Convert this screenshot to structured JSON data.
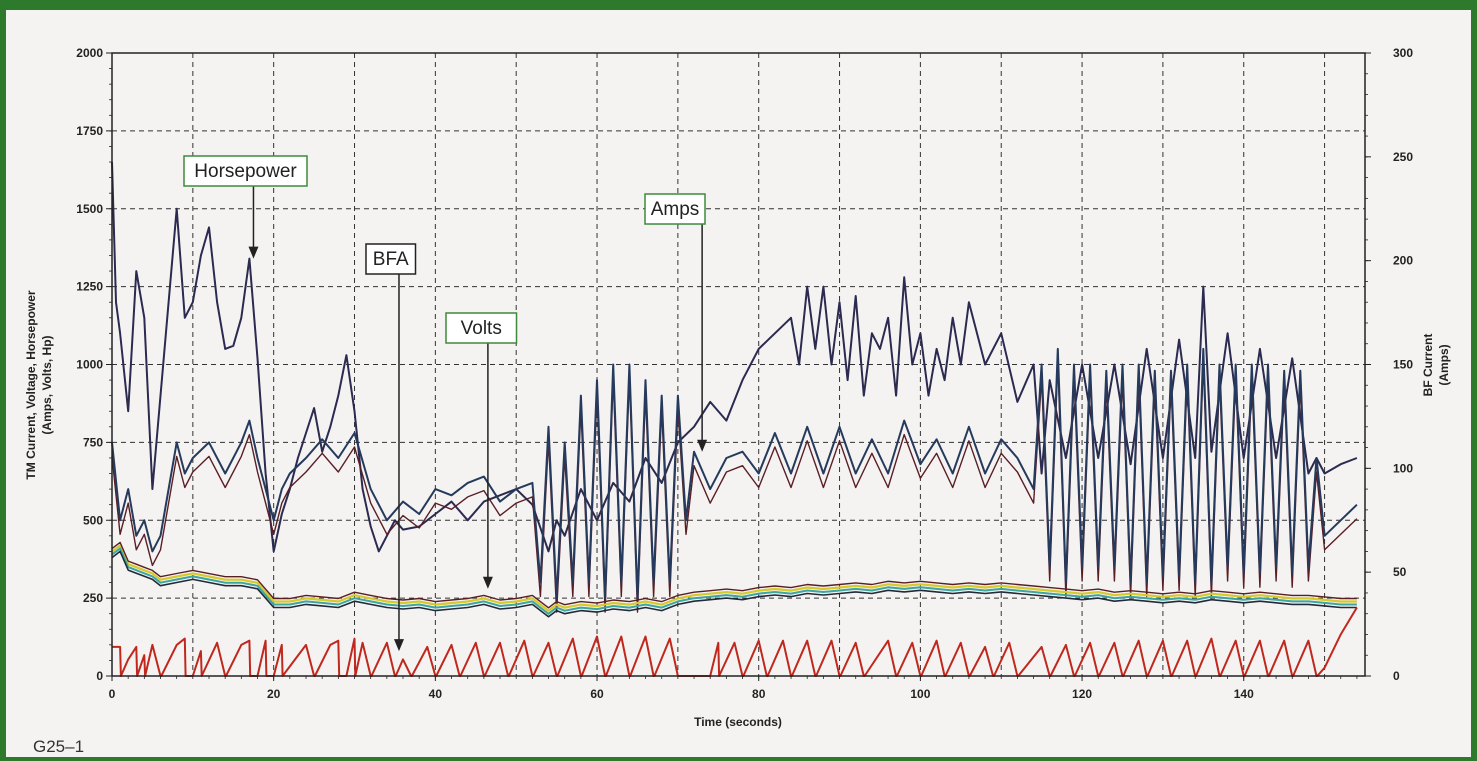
{
  "figure_id": "G25–1",
  "colors": {
    "background_frame": "#2d7a2c",
    "panel": "#f4f3f1",
    "horsepower": "#2b2a50",
    "amps": "#253a5c",
    "amps_maroon": "#5a1f26",
    "volts": "#1f2b3b",
    "volts_yellow": "#d8c92b",
    "volts_teal": "#3da6a0",
    "bfa": "#c0281e",
    "annotation_green": "#3d8a3a",
    "annotation_dark": "#222222"
  },
  "chart_data": {
    "type": "line",
    "title": "",
    "xlabel": "Time (seconds)",
    "ylabel_left": [
      "TM Current, Voltage, Horsepower",
      "(Amps, Volts, Hp)"
    ],
    "ylabel_right": [
      "BF Current",
      "(Amps)"
    ],
    "xlim": [
      0,
      155
    ],
    "ylim_left": [
      0,
      2000
    ],
    "ylim_right": [
      0,
      300
    ],
    "x_ticks": [
      "0",
      "20",
      "40",
      "60",
      "80",
      "100",
      "120",
      "140"
    ],
    "y_ticks_left": [
      "0",
      "250",
      "500",
      "750",
      "1000",
      "1250",
      "1500",
      "1750",
      "2000"
    ],
    "y_ticks_right": [
      "0",
      "50",
      "100",
      "150",
      "200",
      "250",
      "300"
    ],
    "grid": true,
    "annotations": [
      {
        "text": "Horsepower",
        "points_to": [
          17.5,
          1340
        ]
      },
      {
        "text": "BFA",
        "points_to": [
          35.5,
          80
        ]
      },
      {
        "text": "Volts",
        "points_to": [
          46.5,
          280
        ]
      },
      {
        "text": "Amps",
        "points_to": [
          73,
          720
        ]
      }
    ],
    "series": [
      {
        "name": "Horsepower",
        "axis": "left",
        "x": [
          0,
          0.5,
          1,
          2,
          3,
          4,
          5,
          6,
          7,
          8,
          9,
          10,
          11,
          12,
          13,
          14,
          15,
          16,
          17,
          18,
          19,
          20,
          21,
          22,
          23,
          24,
          25,
          26,
          27,
          28,
          29,
          30,
          31,
          32,
          33,
          34,
          35,
          36,
          38,
          40,
          42,
          44,
          46,
          48,
          50,
          52,
          54,
          55,
          56,
          58,
          60,
          62,
          64,
          66,
          68,
          70,
          72,
          74,
          76,
          78,
          80,
          82,
          84,
          85,
          86,
          87,
          88,
          89,
          90,
          91,
          92,
          93,
          94,
          95,
          96,
          97,
          98,
          99,
          100,
          101,
          102,
          103,
          104,
          105,
          106,
          107,
          108,
          110,
          112,
          114,
          115,
          116,
          118,
          120,
          122,
          124,
          126,
          128,
          130,
          132,
          134,
          135,
          136,
          138,
          140,
          142,
          144,
          146,
          148,
          149,
          150,
          152,
          154
        ],
        "y": [
          1650,
          1200,
          1100,
          850,
          1300,
          1150,
          600,
          900,
          1200,
          1500,
          1150,
          1200,
          1350,
          1440,
          1200,
          1050,
          1060,
          1150,
          1340,
          1020,
          650,
          400,
          520,
          600,
          700,
          780,
          860,
          720,
          800,
          900,
          1030,
          850,
          600,
          480,
          400,
          450,
          500,
          470,
          480,
          520,
          560,
          500,
          560,
          580,
          600,
          550,
          400,
          500,
          450,
          600,
          500,
          620,
          560,
          700,
          620,
          750,
          800,
          880,
          820,
          950,
          1050,
          1100,
          1150,
          1000,
          1250,
          1050,
          1250,
          1000,
          1200,
          950,
          1220,
          900,
          1100,
          1050,
          1150,
          900,
          1280,
          1000,
          1100,
          900,
          1050,
          950,
          1150,
          1000,
          1200,
          1100,
          1000,
          1100,
          880,
          1000,
          650,
          950,
          700,
          1000,
          700,
          1000,
          680,
          1050,
          700,
          1080,
          700,
          1250,
          720,
          1100,
          700,
          1050,
          700,
          1020,
          650,
          700,
          650,
          680,
          700
        ]
      },
      {
        "name": "Amps",
        "axis": "left",
        "x": [
          0,
          1,
          2,
          3,
          4,
          5,
          6,
          8,
          9,
          10,
          12,
          14,
          16,
          17,
          18,
          19,
          20,
          21,
          22,
          24,
          26,
          28,
          30,
          32,
          34,
          36,
          38,
          40,
          42,
          44,
          46,
          48,
          50,
          52,
          53,
          54,
          55,
          56,
          57,
          58,
          59,
          60,
          61,
          62,
          63,
          64,
          65,
          66,
          67,
          68,
          69,
          70,
          71,
          72,
          74,
          76,
          78,
          80,
          82,
          84,
          86,
          88,
          90,
          92,
          94,
          96,
          98,
          100,
          102,
          104,
          106,
          108,
          110,
          112,
          114,
          115,
          116,
          117,
          118,
          119,
          120,
          121,
          122,
          123,
          124,
          125,
          126,
          127,
          128,
          129,
          130,
          131,
          132,
          133,
          134,
          135,
          136,
          137,
          138,
          139,
          140,
          141,
          142,
          143,
          144,
          145,
          146,
          147,
          148,
          149,
          150,
          152,
          154
        ],
        "y": [
          750,
          500,
          600,
          450,
          500,
          400,
          450,
          750,
          650,
          700,
          750,
          650,
          750,
          820,
          700,
          600,
          500,
          600,
          650,
          700,
          760,
          700,
          780,
          600,
          500,
          560,
          520,
          600,
          580,
          620,
          640,
          560,
          600,
          620,
          300,
          800,
          250,
          750,
          300,
          900,
          300,
          950,
          250,
          1000,
          300,
          1000,
          250,
          950,
          300,
          900,
          300,
          900,
          500,
          720,
          600,
          700,
          720,
          650,
          780,
          650,
          800,
          650,
          800,
          650,
          760,
          650,
          820,
          680,
          760,
          650,
          800,
          650,
          760,
          700,
          600,
          1000,
          350,
          1050,
          300,
          1000,
          350,
          1000,
          350,
          980,
          350,
          1000,
          300,
          1000,
          300,
          980,
          320,
          980,
          320,
          1000,
          300,
          1050,
          300,
          1000,
          350,
          1000,
          330,
          1000,
          330,
          1000,
          350,
          980,
          330,
          980,
          350,
          700,
          450,
          500,
          550
        ]
      },
      {
        "name": "Volts",
        "axis": "left",
        "x": [
          0,
          1,
          2,
          3,
          4,
          5,
          6,
          8,
          10,
          12,
          14,
          16,
          18,
          20,
          22,
          24,
          26,
          28,
          30,
          32,
          34,
          36,
          38,
          40,
          42,
          44,
          46,
          48,
          50,
          52,
          54,
          55,
          56,
          58,
          60,
          62,
          64,
          66,
          68,
          70,
          72,
          74,
          76,
          78,
          80,
          82,
          84,
          86,
          88,
          90,
          92,
          94,
          96,
          98,
          100,
          102,
          104,
          106,
          108,
          110,
          112,
          114,
          116,
          118,
          120,
          122,
          124,
          126,
          128,
          130,
          132,
          134,
          136,
          138,
          140,
          142,
          144,
          146,
          148,
          150,
          152,
          154
        ],
        "y": [
          380,
          400,
          340,
          330,
          320,
          310,
          290,
          300,
          310,
          300,
          290,
          290,
          280,
          220,
          220,
          230,
          225,
          220,
          240,
          230,
          220,
          215,
          220,
          210,
          215,
          220,
          230,
          215,
          220,
          230,
          190,
          210,
          200,
          210,
          205,
          215,
          210,
          220,
          210,
          230,
          240,
          245,
          250,
          245,
          255,
          260,
          255,
          265,
          260,
          265,
          270,
          265,
          275,
          270,
          275,
          270,
          265,
          270,
          265,
          270,
          265,
          260,
          255,
          250,
          245,
          250,
          240,
          245,
          240,
          235,
          240,
          235,
          245,
          240,
          235,
          240,
          235,
          230,
          230,
          225,
          220,
          220
        ]
      },
      {
        "name": "BFA",
        "axis": "right",
        "x": [
          0,
          1,
          1.1,
          2,
          3,
          3.1,
          4,
          4.1,
          5,
          6,
          6.1,
          8,
          9,
          9.1,
          10,
          11,
          11.1,
          13,
          14,
          14.1,
          16,
          17,
          17.1,
          18,
          19,
          19.1,
          20,
          21,
          21.1,
          24,
          25,
          25.1,
          27,
          28,
          28.1,
          29,
          30,
          30.1,
          31,
          32,
          32.1,
          34,
          35,
          35.1,
          36,
          37,
          37.1,
          39,
          40,
          40.1,
          42,
          43,
          43.1,
          45,
          46,
          46.1,
          48,
          49,
          49.1,
          51,
          52,
          52.1,
          54,
          55,
          55.1,
          57,
          58,
          58.1,
          60,
          61,
          61.1,
          63,
          64,
          64.1,
          66,
          67,
          67.1,
          69,
          70,
          70.1,
          74,
          75,
          75.1,
          77,
          78,
          78.1,
          80,
          81,
          81.1,
          83,
          84,
          84.1,
          86,
          87,
          87.1,
          89,
          90,
          90.1,
          92,
          93,
          93.1,
          96,
          97,
          97.1,
          99,
          100,
          100.1,
          102,
          103,
          103.1,
          105,
          106,
          106.1,
          108,
          109,
          109.1,
          111,
          112,
          112.1,
          115,
          116,
          116.1,
          118,
          119,
          119.1,
          121,
          122,
          122.1,
          124,
          125,
          125.1,
          127,
          128,
          128.1,
          130,
          131,
          131.1,
          133,
          134,
          134.1,
          136,
          137,
          137.1,
          139,
          140,
          140.1,
          142,
          143,
          143.1,
          145,
          146,
          146.1,
          148,
          149,
          149.1,
          150,
          152,
          154
        ],
        "y": [
          14,
          14,
          0,
          8,
          14,
          0,
          10,
          0,
          15,
          0,
          0,
          15,
          18,
          0,
          0,
          12,
          0,
          16,
          0,
          0,
          15,
          17,
          0,
          0,
          17,
          0,
          0,
          15,
          0,
          15,
          0,
          0,
          15,
          17,
          0,
          0,
          18,
          0,
          16,
          0,
          0,
          16,
          0,
          0,
          8,
          0,
          0,
          14,
          0,
          0,
          15,
          0,
          0,
          16,
          0,
          0,
          16,
          0,
          0,
          17,
          0,
          0,
          16,
          0,
          0,
          18,
          0,
          0,
          19,
          0,
          0,
          19,
          0,
          0,
          19,
          0,
          0,
          18,
          0,
          0,
          0,
          16,
          0,
          16,
          0,
          0,
          17,
          0,
          0,
          17,
          0,
          0,
          17,
          0,
          0,
          17,
          0,
          0,
          16,
          0,
          0,
          17,
          0,
          0,
          16,
          0,
          0,
          17,
          0,
          0,
          16,
          0,
          0,
          14,
          0,
          0,
          16,
          0,
          0,
          14,
          0,
          0,
          15,
          0,
          0,
          16,
          0,
          0,
          16,
          0,
          0,
          17,
          0,
          0,
          17,
          0,
          0,
          17,
          0,
          0,
          18,
          0,
          0,
          17,
          0,
          0,
          17,
          0,
          0,
          17,
          0,
          0,
          17,
          0,
          0,
          4,
          20,
          33
        ]
      }
    ]
  }
}
